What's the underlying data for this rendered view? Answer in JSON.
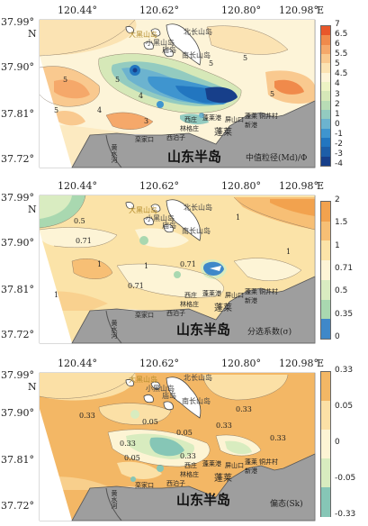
{
  "x_axis_labels": [
    "120.44°",
    "120.62°",
    "120.80°",
    "120.98°"
  ],
  "x_axis_unit": "E",
  "y_axis_labels": [
    "37.99°",
    "37.90°",
    "37.81°",
    "37.72°"
  ],
  "y_axis_unit": "N",
  "places": {
    "daheishan": "大黑山岛",
    "xiaoheishan": "小黑山岛",
    "miaodao": "庙岛",
    "nanchangshan": "南长山岛",
    "beichangshan": "北长山岛",
    "xiwangzhuang": "西庄",
    "penglai_port": "蓬莱港",
    "pingshan": "屏山口",
    "penglai_new_port": "蓬莱新港",
    "lanshan": "栾山口",
    "luanshan_village": "铜井村",
    "linwei": "林格庄",
    "xinanzhuang": "西泊子",
    "luanjia": "栾家口",
    "penglai": "蓬莱",
    "shandong": "山东半岛",
    "river": "黄水河"
  },
  "panels": [
    {
      "name": "median-grain-size",
      "legend_title": "中值粒径(Md)/Φ",
      "legend_ticks": [
        "7",
        "6.5",
        "6",
        "5.5",
        "5",
        "4.5",
        "4",
        "3",
        "2",
        "1",
        "0",
        "-1",
        "-2",
        "-3",
        "-4"
      ],
      "legend_colors": [
        "#e8572a",
        "#f08a4b",
        "#f5a86a",
        "#f9c98f",
        "#fbe3b3",
        "#fdf4d8",
        "#edf3c4",
        "#d6e8b8",
        "#b8dcb5",
        "#93cbc0",
        "#6cb3cf",
        "#3f95cf",
        "#2276c0",
        "#1d5ea8",
        "#173f8a"
      ],
      "contour_labels": [
        "5",
        "5",
        "5",
        "4",
        "4",
        "5",
        "5",
        "3",
        "5"
      ]
    },
    {
      "name": "sorting-coefficient",
      "legend_title": "分选系数(σ)",
      "legend_ticks": [
        "2",
        "1.5",
        "1",
        "0.71",
        "0.5",
        "0.35",
        "0"
      ],
      "legend_colors": [
        "#f2a24e",
        "#f7bf75",
        "#fbe3a8",
        "#fdf4d6",
        "#d9ecc1",
        "#a9d8b0",
        "#3f88c9"
      ],
      "contour_labels": [
        "0.5",
        "0.71",
        "1",
        "1",
        "0.71",
        "1",
        "1",
        "0.71",
        "1"
      ]
    },
    {
      "name": "skewness",
      "legend_title": "偏态(Sk)",
      "legend_ticks": [
        "0.33",
        "0.05",
        "0",
        "-0.05",
        "-0.33"
      ],
      "legend_colors": [
        "#f3b765",
        "#fbe0a6",
        "#fdf4d4",
        "#d8ecbf",
        "#86c6b6"
      ],
      "contour_labels": [
        "0.33",
        "0.33",
        "0.05",
        "0.33",
        "0.33",
        "0.05",
        "0.33",
        "0.05",
        "0.33"
      ]
    }
  ]
}
